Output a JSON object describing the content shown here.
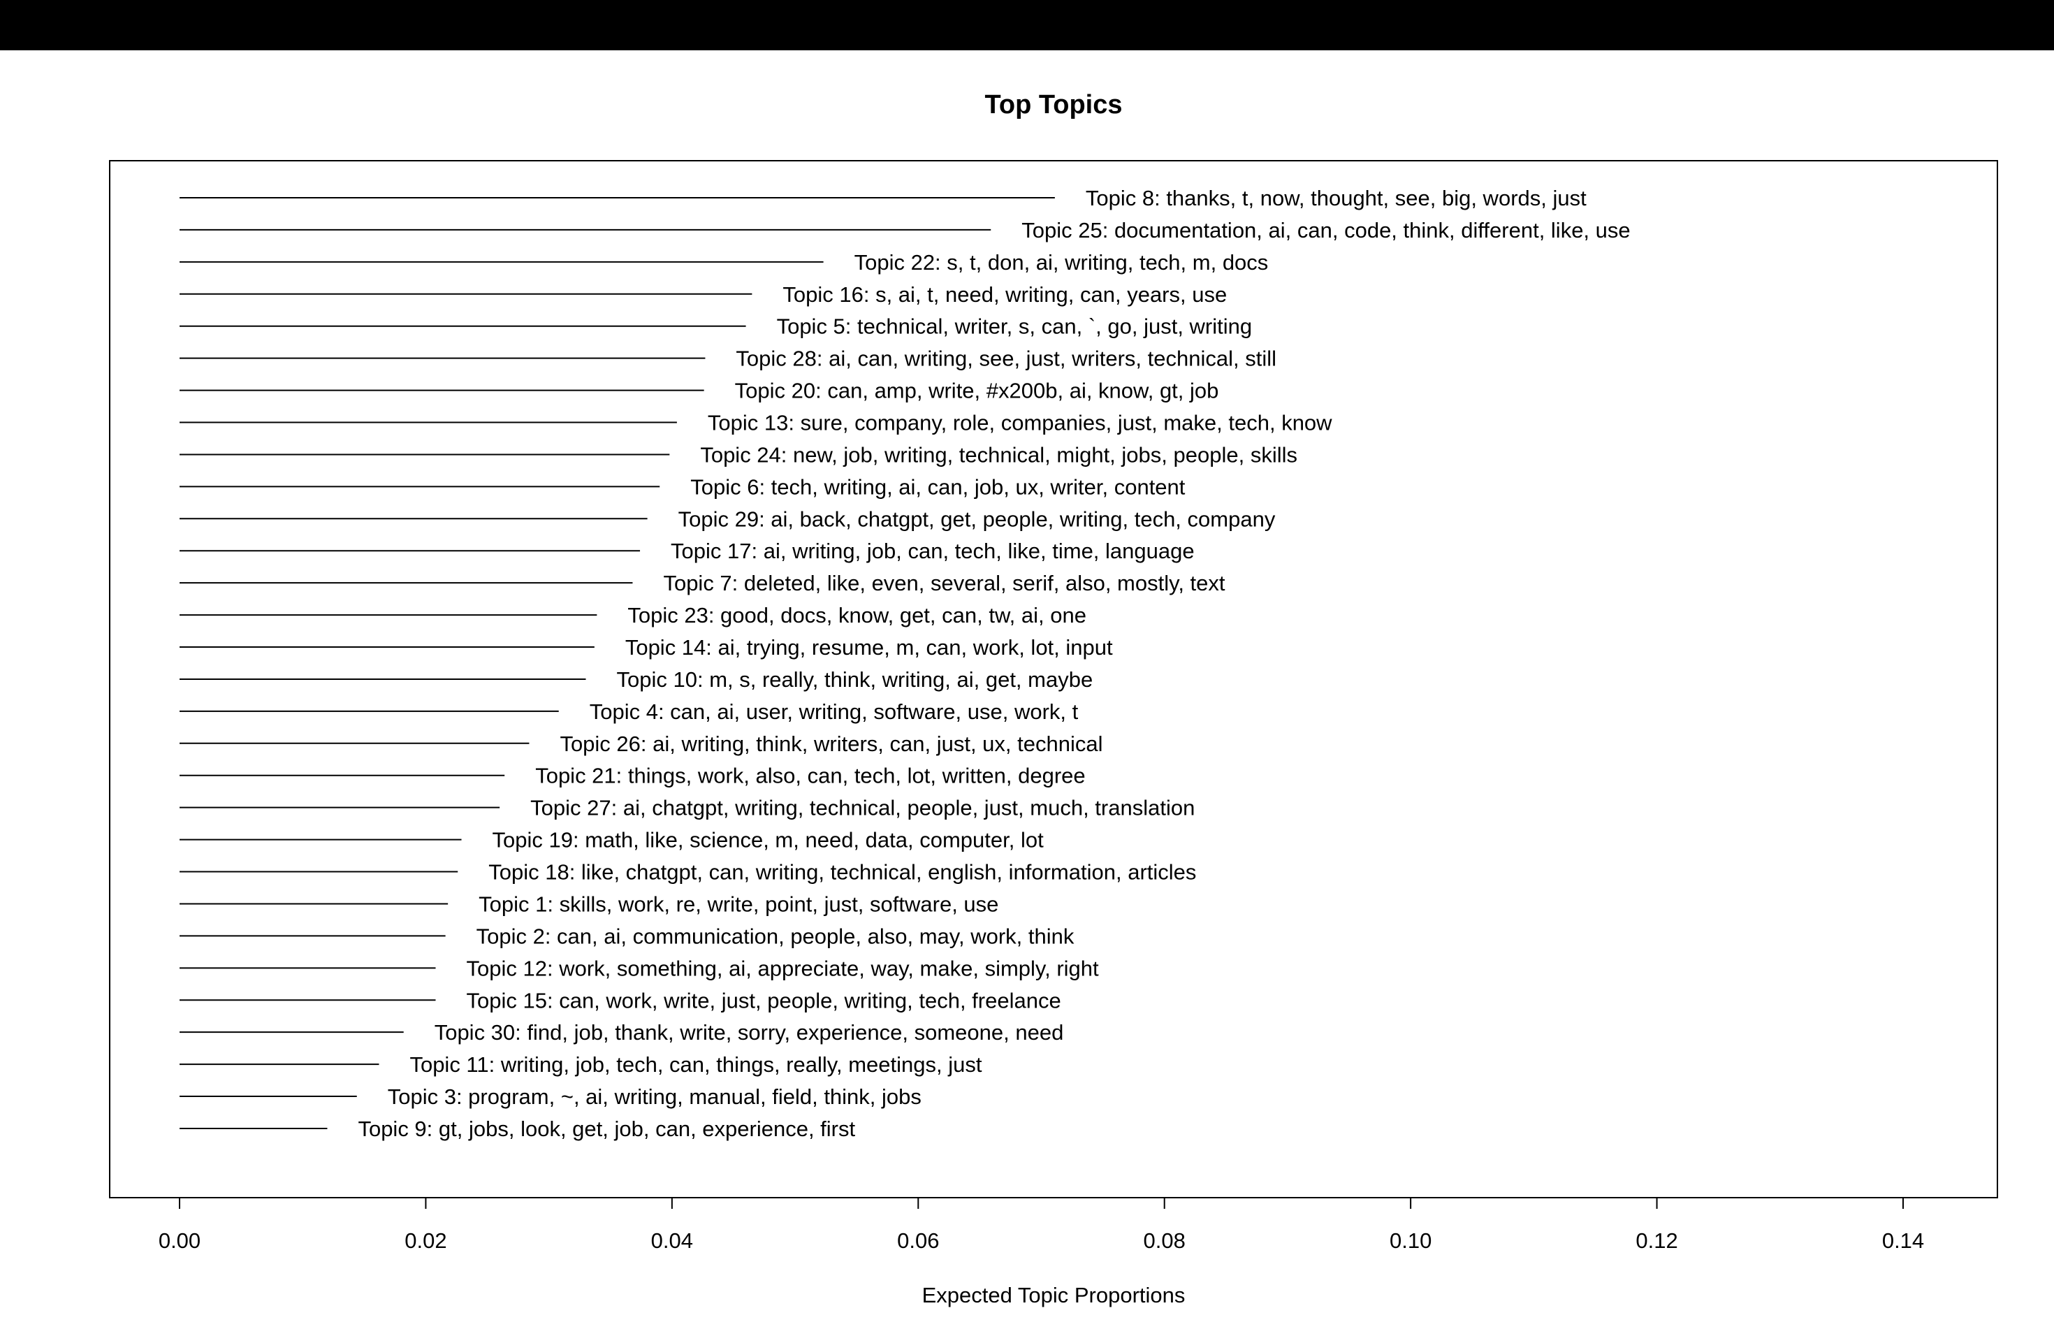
{
  "chart_data": {
    "type": "bar",
    "title": "Top Topics",
    "xlabel": "Expected Topic Proportions",
    "ylabel": "",
    "xlim": [
      0.0,
      0.14
    ],
    "xticks": [
      "0.00",
      "0.02",
      "0.04",
      "0.06",
      "0.08",
      "0.10",
      "0.12",
      "0.14"
    ],
    "grid": false,
    "legend": "none",
    "colors": {
      "bar": "#000000",
      "frame": "#000000",
      "top_band": "#000000"
    },
    "categories": [
      "Topic 8: thanks, t, now, thought, see, big, words, just",
      "Topic 25: documentation, ai, can, code, think, different, like, use",
      "Topic 22: s, t, don, ai, writing, tech, m, docs",
      "Topic 16: s, ai, t, need, writing, can, years, use",
      "Topic 5: technical, writer, s, can, `, go, just, writing",
      "Topic 28: ai, can, writing, see, just, writers, technical, still",
      "Topic 20: can, amp, write, #x200b, ai, know, gt, job",
      "Topic 13: sure, company, role, companies, just, make, tech, know",
      "Topic 24: new, job, writing, technical, might, jobs, people, skills",
      "Topic 6: tech, writing, ai, can, job, ux, writer, content",
      "Topic 29: ai, back, chatgpt, get, people, writing, tech, company",
      "Topic 17: ai, writing, job, can, tech, like, time, language",
      "Topic 7: deleted, like, even, several, serif, also, mostly, text",
      "Topic 23: good, docs, know, get, can, tw, ai, one",
      "Topic 14: ai, trying, resume, m, can, work, lot, input",
      "Topic 10: m, s, really, think, writing, ai, get, maybe",
      "Topic 4: can, ai, user, writing, software, use, work, t",
      "Topic 26: ai, writing, think, writers, can, just, ux, technical",
      "Topic 21: things, work, also, can, tech, lot, written, degree",
      "Topic 27: ai, chatgpt, writing, technical, people, just, much, translation",
      "Topic 19: math, like, science, m, need, data, computer, lot",
      "Topic 18: like, chatgpt, can, writing, technical, english, information, articles",
      "Topic 1: skills, work, re, write, point, just, software, use",
      "Topic 2: can, ai, communication, people, also, may, work, think",
      "Topic 12: work, something, ai, appreciate, way, make, simply, right",
      "Topic 15: can, work, write, just, people, writing, tech, freelance",
      "Topic 30: find, job, thank, write, sorry, experience, someone, need",
      "Topic 11: writing, job, tech, can, things, really, meetings, just",
      "Topic 3: program, ~, ai, writing, manual, field, think, jobs",
      "Topic 9: gt, jobs, look, get, job, can, experience, first"
    ],
    "values": [
      0.0711,
      0.0659,
      0.0523,
      0.0465,
      0.046,
      0.0427,
      0.0426,
      0.0404,
      0.0398,
      0.039,
      0.038,
      0.0374,
      0.0368,
      0.0339,
      0.0337,
      0.033,
      0.0308,
      0.0284,
      0.0264,
      0.026,
      0.0229,
      0.0226,
      0.0218,
      0.0216,
      0.0208,
      0.0208,
      0.0182,
      0.0162,
      0.0144,
      0.012
    ]
  }
}
